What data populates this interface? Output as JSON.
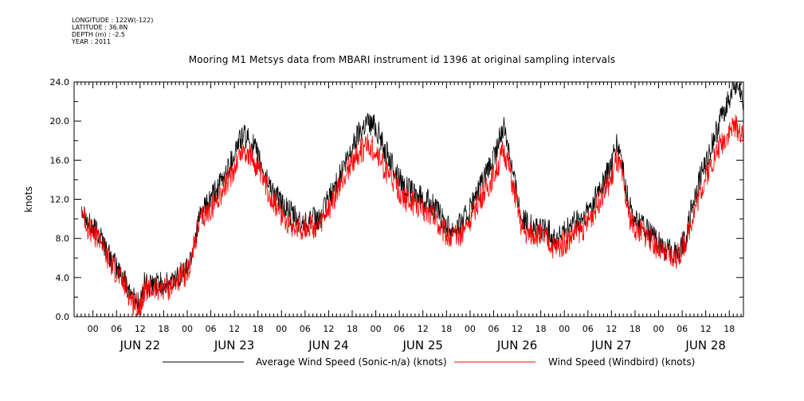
{
  "meta": {
    "longitude": "LONGITUDE : 122W(-122)",
    "latitude": "LATITUDE : 36.8N",
    "depth": "DEPTH (m) : -2.5",
    "year": "YEAR : 2011"
  },
  "chart_data": {
    "type": "line",
    "title": "Mooring M1 Metsys data from MBARI instrument id 1396 at original sampling intervals",
    "ylabel": "knots",
    "xlabel": "",
    "ylim": [
      0,
      24
    ],
    "xlim": [
      -0.2,
      6.9
    ],
    "y_ticks": [
      "0.0",
      "4.0",
      "8.0",
      "12.0",
      "16.0",
      "20.0",
      "24.0"
    ],
    "x_hour_ticks": [
      "00",
      "06",
      "12",
      "18",
      "00",
      "06",
      "12",
      "18",
      "00",
      "06",
      "12",
      "18",
      "00",
      "06",
      "12",
      "18",
      "00",
      "06",
      "12",
      "18",
      "00",
      "06",
      "12",
      "18",
      "00",
      "06",
      "12",
      "18"
    ],
    "x_day_labels": [
      "JUN 22",
      "JUN 23",
      "JUN 24",
      "JUN 25",
      "JUN 26",
      "JUN 27",
      "JUN 28"
    ],
    "x_unit": "days since JUN 22 00:00",
    "grid": false,
    "legend_position": "bottom",
    "series": [
      {
        "name": "Average Wind Speed (Sonic-n/a) (knots)",
        "color": "#000000",
        "points": [
          [
            -0.12,
            11.5
          ],
          [
            -0.05,
            9.5
          ],
          [
            0.0,
            9.0
          ],
          [
            0.08,
            8.5
          ],
          [
            0.15,
            6.5
          ],
          [
            0.25,
            5.0
          ],
          [
            0.35,
            3.5
          ],
          [
            0.42,
            2.0
          ],
          [
            0.5,
            1.2
          ],
          [
            0.55,
            3.5
          ],
          [
            0.6,
            3.0
          ],
          [
            0.7,
            3.5
          ],
          [
            0.8,
            3.2
          ],
          [
            0.9,
            4.2
          ],
          [
            1.0,
            5.0
          ],
          [
            1.05,
            6.5
          ],
          [
            1.1,
            9.0
          ],
          [
            1.15,
            10.5
          ],
          [
            1.25,
            12.0
          ],
          [
            1.35,
            13.5
          ],
          [
            1.45,
            15.5
          ],
          [
            1.55,
            18.0
          ],
          [
            1.6,
            18.5
          ],
          [
            1.7,
            17.5
          ],
          [
            1.8,
            15.0
          ],
          [
            1.9,
            13.0
          ],
          [
            2.0,
            11.5
          ],
          [
            2.1,
            10.5
          ],
          [
            2.2,
            9.5
          ],
          [
            2.3,
            10.0
          ],
          [
            2.4,
            9.8
          ],
          [
            2.5,
            12.0
          ],
          [
            2.6,
            14.0
          ],
          [
            2.7,
            16.0
          ],
          [
            2.8,
            18.5
          ],
          [
            2.9,
            20.0
          ],
          [
            3.0,
            19.5
          ],
          [
            3.1,
            17.0
          ],
          [
            3.2,
            15.0
          ],
          [
            3.3,
            13.5
          ],
          [
            3.4,
            12.5
          ],
          [
            3.5,
            12.0
          ],
          [
            3.6,
            11.5
          ],
          [
            3.7,
            10.0
          ],
          [
            3.8,
            9.0
          ],
          [
            3.9,
            9.5
          ],
          [
            4.0,
            11.0
          ],
          [
            4.1,
            13.0
          ],
          [
            4.2,
            15.0
          ],
          [
            4.3,
            17.5
          ],
          [
            4.35,
            19.5
          ],
          [
            4.4,
            18.0
          ],
          [
            4.45,
            15.0
          ],
          [
            4.5,
            12.5
          ],
          [
            4.55,
            10.0
          ],
          [
            4.6,
            9.5
          ],
          [
            4.7,
            9.0
          ],
          [
            4.8,
            9.0
          ],
          [
            4.9,
            8.0
          ],
          [
            5.0,
            8.5
          ],
          [
            5.1,
            9.5
          ],
          [
            5.2,
            10.0
          ],
          [
            5.3,
            11.5
          ],
          [
            5.4,
            13.5
          ],
          [
            5.5,
            15.5
          ],
          [
            5.55,
            17.5
          ],
          [
            5.6,
            16.5
          ],
          [
            5.65,
            13.0
          ],
          [
            5.7,
            11.0
          ],
          [
            5.75,
            10.0
          ],
          [
            5.85,
            9.0
          ],
          [
            5.95,
            8.0
          ],
          [
            6.05,
            7.0
          ],
          [
            6.15,
            6.5
          ],
          [
            6.22,
            6.8
          ],
          [
            6.3,
            8.5
          ],
          [
            6.35,
            11.0
          ],
          [
            6.45,
            14.5
          ],
          [
            6.55,
            17.0
          ],
          [
            6.65,
            20.0
          ],
          [
            6.75,
            22.5
          ],
          [
            6.8,
            23.5
          ],
          [
            6.87,
            23.0
          ],
          [
            6.9,
            21.0
          ]
        ]
      },
      {
        "name": "Wind Speed (Windbird) (knots)",
        "color": "#ff0000",
        "points": [
          [
            -0.12,
            11.0
          ],
          [
            -0.05,
            9.0
          ],
          [
            0.0,
            8.5
          ],
          [
            0.08,
            8.0
          ],
          [
            0.15,
            6.0
          ],
          [
            0.25,
            4.5
          ],
          [
            0.35,
            3.0
          ],
          [
            0.42,
            1.5
          ],
          [
            0.5,
            1.0
          ],
          [
            0.55,
            3.0
          ],
          [
            0.6,
            2.6
          ],
          [
            0.7,
            3.0
          ],
          [
            0.8,
            2.8
          ],
          [
            0.9,
            3.8
          ],
          [
            1.0,
            4.5
          ],
          [
            1.05,
            6.0
          ],
          [
            1.1,
            8.5
          ],
          [
            1.15,
            10.0
          ],
          [
            1.25,
            11.0
          ],
          [
            1.35,
            12.5
          ],
          [
            1.45,
            14.0
          ],
          [
            1.55,
            16.5
          ],
          [
            1.6,
            17.0
          ],
          [
            1.7,
            16.0
          ],
          [
            1.8,
            14.0
          ],
          [
            1.9,
            12.0
          ],
          [
            2.0,
            10.5
          ],
          [
            2.1,
            9.5
          ],
          [
            2.2,
            9.0
          ],
          [
            2.3,
            9.3
          ],
          [
            2.4,
            9.0
          ],
          [
            2.5,
            11.0
          ],
          [
            2.6,
            13.0
          ],
          [
            2.7,
            15.0
          ],
          [
            2.8,
            16.5
          ],
          [
            2.9,
            17.5
          ],
          [
            3.0,
            17.0
          ],
          [
            3.1,
            15.0
          ],
          [
            3.2,
            13.5
          ],
          [
            3.3,
            12.0
          ],
          [
            3.4,
            11.5
          ],
          [
            3.5,
            11.0
          ],
          [
            3.6,
            10.5
          ],
          [
            3.7,
            9.0
          ],
          [
            3.8,
            8.0
          ],
          [
            3.9,
            8.5
          ],
          [
            4.0,
            10.0
          ],
          [
            4.1,
            12.0
          ],
          [
            4.2,
            13.5
          ],
          [
            4.3,
            15.5
          ],
          [
            4.35,
            17.0
          ],
          [
            4.4,
            16.0
          ],
          [
            4.45,
            13.5
          ],
          [
            4.5,
            11.5
          ],
          [
            4.55,
            9.0
          ],
          [
            4.6,
            8.5
          ],
          [
            4.7,
            8.5
          ],
          [
            4.8,
            8.0
          ],
          [
            4.9,
            7.0
          ],
          [
            5.0,
            7.5
          ],
          [
            5.1,
            8.5
          ],
          [
            5.2,
            9.0
          ],
          [
            5.3,
            10.5
          ],
          [
            5.4,
            12.5
          ],
          [
            5.5,
            14.0
          ],
          [
            5.55,
            16.0
          ],
          [
            5.6,
            15.0
          ],
          [
            5.65,
            12.0
          ],
          [
            5.7,
            10.0
          ],
          [
            5.75,
            9.0
          ],
          [
            5.85,
            8.5
          ],
          [
            5.95,
            7.5
          ],
          [
            6.05,
            6.5
          ],
          [
            6.15,
            6.0
          ],
          [
            6.22,
            6.3
          ],
          [
            6.3,
            8.0
          ],
          [
            6.35,
            10.0
          ],
          [
            6.45,
            13.0
          ],
          [
            6.55,
            15.5
          ],
          [
            6.65,
            17.5
          ],
          [
            6.75,
            19.0
          ],
          [
            6.8,
            19.5
          ],
          [
            6.87,
            19.0
          ],
          [
            6.9,
            18.0
          ]
        ]
      }
    ]
  }
}
